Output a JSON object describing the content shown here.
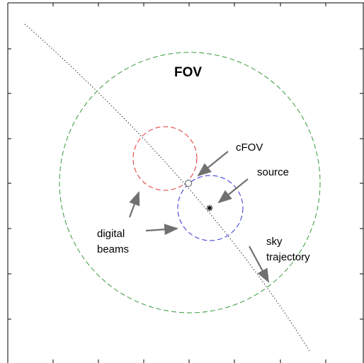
{
  "labels": {
    "fov": "FOV",
    "cfov": "cFOV",
    "source": "source",
    "digital_line1": "digital",
    "digital_line2": "beams",
    "sky_line1": "sky",
    "sky_line2": "trajectory"
  },
  "colors": {
    "fov_circle": "#3a9a3a",
    "beam_red": "#e23030",
    "beam_blue": "#3030d8",
    "arrow": "#707070",
    "trajectory": "#000000",
    "frame": "#000000"
  },
  "icons": {
    "source_marker": "asterisk-icon",
    "cfov_marker": "open-circle-icon"
  }
}
